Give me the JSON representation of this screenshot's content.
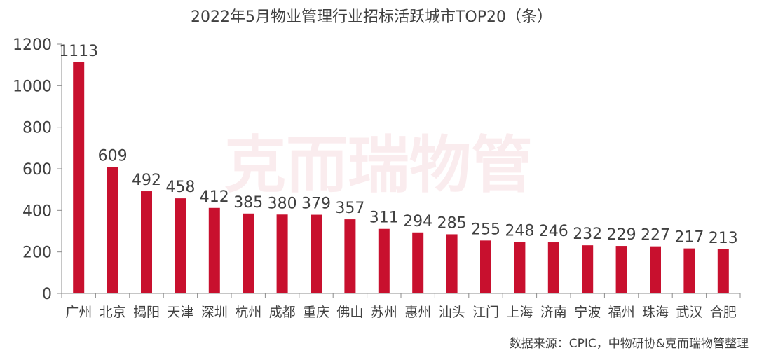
{
  "chart_data": {
    "type": "bar",
    "title": "2022年5月物业管理行业招标活跃城市TOP20（条）",
    "categories": [
      "广州",
      "北京",
      "揭阳",
      "天津",
      "深圳",
      "杭州",
      "成都",
      "重庆",
      "佛山",
      "苏州",
      "惠州",
      "汕头",
      "江门",
      "上海",
      "济南",
      "宁波",
      "福州",
      "珠海",
      "武汉",
      "合肥"
    ],
    "values": [
      1113,
      609,
      492,
      458,
      412,
      385,
      380,
      379,
      357,
      311,
      294,
      285,
      255,
      248,
      246,
      232,
      229,
      227,
      217,
      213
    ],
    "ylim": [
      0,
      1200
    ],
    "yticks": [
      0,
      200,
      400,
      600,
      800,
      1000,
      1200
    ],
    "xlabel": "",
    "ylabel": "",
    "grid": false,
    "bar_color": "#c8102e"
  },
  "watermark": "克而瑞物管",
  "source": "数据来源：CPIC，中物研协&克而瑞物管整理"
}
